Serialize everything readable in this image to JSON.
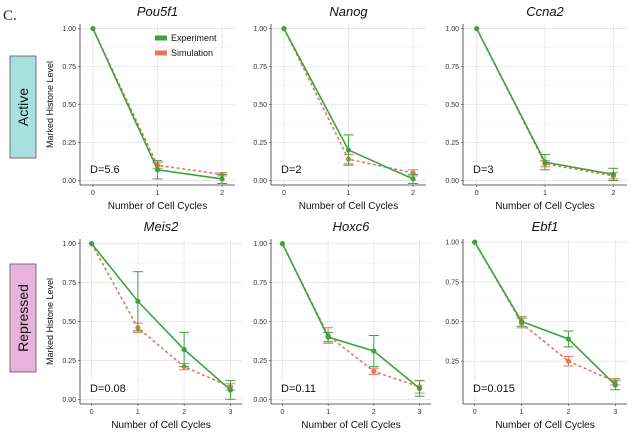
{
  "figure": {
    "panel_letter": "C.",
    "row_labels": [
      "Active",
      "Repressed"
    ],
    "colors": {
      "experiment": "#3aa53f",
      "simulation": "#e8765f",
      "active_box": "#a8e0df",
      "repressed_box": "#e7b3dc",
      "grid": "#e6e6e6",
      "axis": "#333333"
    }
  },
  "legend": {
    "experiment": "Experiment",
    "simulation": "Simulation"
  },
  "chart_data": [
    {
      "type": "line",
      "title": "Pou5f1",
      "xlabel": "Number of Cell Cycles",
      "ylabel": "Marked Histone Level",
      "x": [
        0,
        1,
        2
      ],
      "xlim": [
        -0.2,
        2.2
      ],
      "ylim": [
        -0.03,
        1.03
      ],
      "yticks": [
        "0.00",
        "0.25",
        "0.50",
        "0.75",
        "1.00"
      ],
      "series": [
        {
          "name": "Experiment",
          "values": [
            1.0,
            0.07,
            0.01
          ],
          "err": [
            0.0,
            0.06,
            0.03
          ]
        },
        {
          "name": "Simulation",
          "values": [
            1.0,
            0.1,
            0.04
          ],
          "err": [
            0.0,
            0.02,
            0.01
          ]
        }
      ],
      "annotation": "D=5.6",
      "legend": true
    },
    {
      "type": "line",
      "title": "Nanog",
      "xlabel": "Number of Cell Cycles",
      "ylabel": "",
      "x": [
        0,
        1,
        2
      ],
      "xlim": [
        -0.2,
        2.2
      ],
      "ylim": [
        -0.03,
        1.03
      ],
      "yticks": [
        "0.00",
        "0.25",
        "0.50",
        "0.75",
        "1.00"
      ],
      "series": [
        {
          "name": "Experiment",
          "values": [
            1.0,
            0.2,
            0.01
          ],
          "err": [
            0.0,
            0.1,
            0.03
          ]
        },
        {
          "name": "Simulation",
          "values": [
            1.0,
            0.14,
            0.05
          ],
          "err": [
            0.0,
            0.03,
            0.02
          ]
        }
      ],
      "annotation": "D=2",
      "legend": false
    },
    {
      "type": "line",
      "title": "Ccna2",
      "xlabel": "Number of Cell Cycles",
      "ylabel": "",
      "x": [
        0,
        1,
        2
      ],
      "xlim": [
        -0.2,
        2.2
      ],
      "ylim": [
        -0.03,
        1.03
      ],
      "yticks": [
        "0.00",
        "0.25",
        "0.50",
        "0.75",
        "1.00"
      ],
      "series": [
        {
          "name": "Experiment",
          "values": [
            1.0,
            0.12,
            0.04
          ],
          "err": [
            0.0,
            0.05,
            0.04
          ]
        },
        {
          "name": "Simulation",
          "values": [
            1.0,
            0.11,
            0.03
          ],
          "err": [
            0.0,
            0.02,
            0.02
          ]
        }
      ],
      "annotation": "D=3",
      "legend": false
    },
    {
      "type": "line",
      "title": "Meis2",
      "xlabel": "Number of Cell Cycles",
      "ylabel": "Marked Histone Level",
      "x": [
        0,
        1,
        2,
        3
      ],
      "xlim": [
        -0.25,
        3.25
      ],
      "ylim": [
        -0.03,
        1.03
      ],
      "yticks": [
        "0.00",
        "0.25",
        "0.50",
        "0.75",
        "1.00"
      ],
      "series": [
        {
          "name": "Experiment",
          "values": [
            1.0,
            0.63,
            0.32,
            0.06
          ],
          "err": [
            0.0,
            0.19,
            0.11,
            0.06
          ]
        },
        {
          "name": "Simulation",
          "values": [
            1.0,
            0.46,
            0.21,
            0.08
          ],
          "err": [
            0.0,
            0.03,
            0.02,
            0.02
          ]
        }
      ],
      "annotation": "D=0.08",
      "legend": false
    },
    {
      "type": "line",
      "title": "Hoxc6",
      "xlabel": "Number of Cell Cycles",
      "ylabel": "",
      "x": [
        0,
        1,
        2,
        3
      ],
      "xlim": [
        -0.25,
        3.25
      ],
      "ylim": [
        -0.03,
        1.03
      ],
      "yticks": [
        "0.00",
        "0.25",
        "0.50",
        "0.75",
        "1.00"
      ],
      "series": [
        {
          "name": "Experiment",
          "values": [
            1.0,
            0.4,
            0.31,
            0.07
          ],
          "err": [
            0.0,
            0.03,
            0.1,
            0.05
          ]
        },
        {
          "name": "Simulation",
          "values": [
            1.0,
            0.41,
            0.18,
            0.08
          ],
          "err": [
            0.0,
            0.05,
            0.02,
            0.04
          ]
        }
      ],
      "annotation": "D=0.11",
      "legend": false
    },
    {
      "type": "line",
      "title": "Ebf1",
      "xlabel": "Number of Cell Cycles",
      "ylabel": "",
      "x": [
        0,
        1,
        2,
        3
      ],
      "xlim": [
        -0.25,
        3.25
      ],
      "ylim": [
        -0.02,
        1.02
      ],
      "yticks": [
        "0.25",
        "0.50",
        "0.75",
        "1.00"
      ],
      "series": [
        {
          "name": "Experiment",
          "values": [
            1.0,
            0.5,
            0.39,
            0.1
          ],
          "err": [
            0.0,
            0.03,
            0.05,
            0.03
          ]
        },
        {
          "name": "Simulation",
          "values": [
            1.0,
            0.49,
            0.25,
            0.12
          ],
          "err": [
            0.0,
            0.03,
            0.03,
            0.02
          ]
        }
      ],
      "annotation": "D=0.015",
      "legend": false
    }
  ]
}
